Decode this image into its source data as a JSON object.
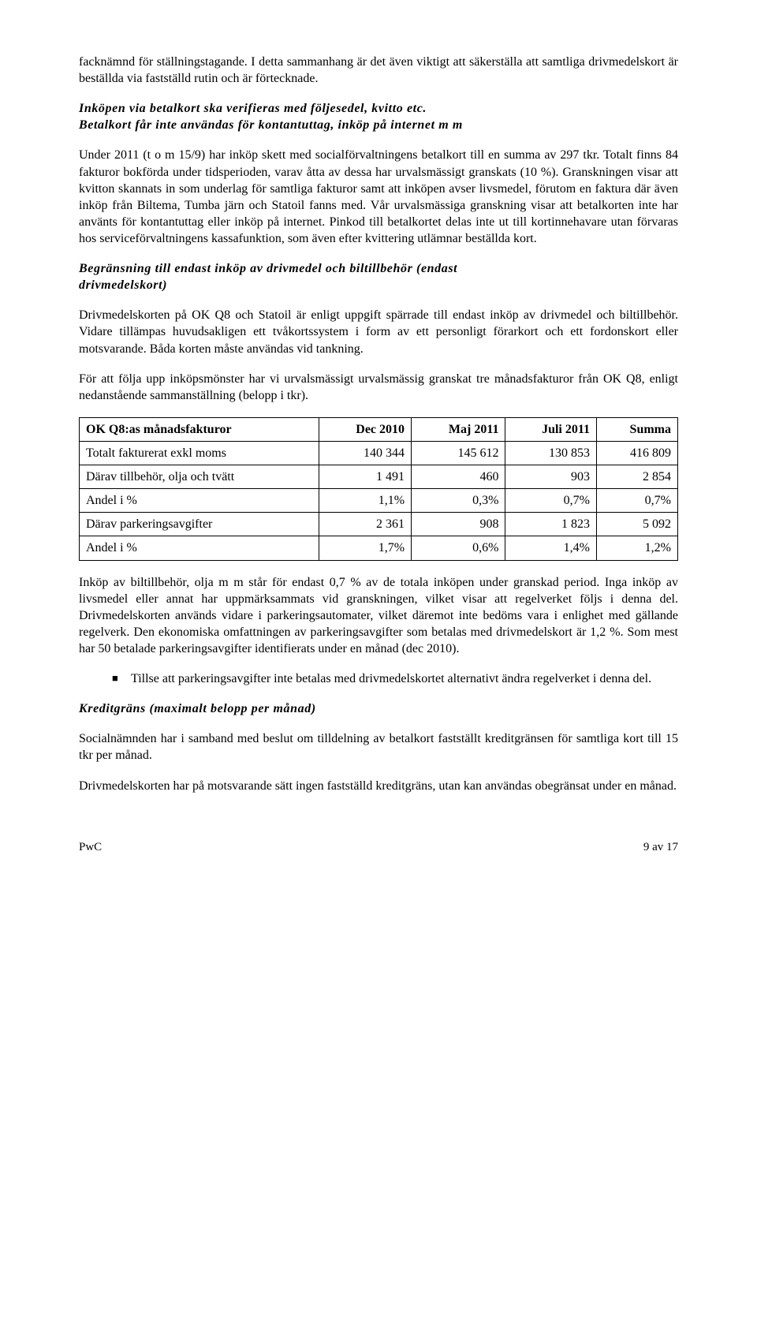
{
  "p1": "facknämnd för ställningstagande. I detta sammanhang är det även viktigt att säkerställa att samtliga drivmedelskort är beställda via fastställd rutin och är förtecknade.",
  "h1_line1": "Inköpen via betalkort ska verifieras med följesedel, kvitto etc.",
  "h1_line2": "Betalkort får inte användas för kontantuttag, inköp på internet m m",
  "p2": "Under 2011 (t o m 15/9) har inköp skett med socialförvaltningens betalkort till en summa av 297 tkr. Totalt finns 84 fakturor bokförda under tidsperioden, varav åtta av dessa har urvalsmässigt granskats (10 %). Granskningen visar att kvitton skannats in som underlag för samtliga fakturor samt att inköpen avser livsmedel, förutom en faktura där även inköp från Biltema, Tumba järn och Statoil fanns med. Vår urvalsmässiga granskning visar att betalkorten inte har använts för kontantuttag eller inköp på internet. Pinkod till betalkortet delas inte ut till kortinnehavare utan förvaras hos serviceförvaltningens kassafunktion, som även efter kvittering utlämnar beställda kort.",
  "h2_line1": "Begränsning till endast inköp av drivmedel och biltillbehör (endast",
  "h2_line2": "drivmedelskort)",
  "p3": "Drivmedelskorten på OK Q8 och Statoil är enligt uppgift spärrade till endast inköp av drivmedel och biltillbehör. Vidare tillämpas huvudsakligen ett tvåkortssystem i form av ett personligt förarkort och ett fordonskort eller motsvarande. Båda korten måste användas vid tankning.",
  "p4": "För att följa upp inköpsmönster har vi urvalsmässigt urvalsmässig granskat tre månadsfakturor från OK Q8, enligt nedanstående sammanställning (belopp i tkr).",
  "table": {
    "headers": [
      "OK Q8:as månadsfakturor",
      "Dec 2010",
      "Maj 2011",
      "Juli 2011",
      "Summa"
    ],
    "rows": [
      [
        "Totalt fakturerat exkl moms",
        "140 344",
        "145 612",
        "130 853",
        "416 809"
      ],
      [
        "Därav tillbehör, olja och tvätt",
        "1 491",
        "460",
        "903",
        "2 854"
      ],
      [
        "Andel i %",
        "1,1%",
        "0,3%",
        "0,7%",
        "0,7%"
      ],
      [
        "Därav parkeringsavgifter",
        "2 361",
        "908",
        "1 823",
        "5 092"
      ],
      [
        "Andel i %",
        "1,7%",
        "0,6%",
        "1,4%",
        "1,2%"
      ]
    ]
  },
  "p5": "Inköp av biltillbehör, olja m m står för endast 0,7 % av de totala inköpen under granskad period. Inga inköp av livsmedel eller annat har uppmärksammats vid granskningen, vilket visar att regelverket följs i denna del. Drivmedelskorten används vidare i parkeringsautomater, vilket däremot inte bedöms vara i enlighet med gällande regelverk. Den ekonomiska omfattningen av parkeringsavgifter som betalas med drivmedelskort är 1,2 %. Som mest har 50 betalade parkeringsavgifter identifierats under en månad (dec 2010).",
  "bullet1": "Tillse att parkeringsavgifter inte betalas med drivmedelskortet alternativt ändra regelverket i denna del.",
  "h3": "Kreditgräns (maximalt belopp per månad)",
  "p6": "Socialnämnden har i samband med beslut om tilldelning av betalkort fastställt kreditgränsen för samtliga kort till 15 tkr per månad.",
  "p7": "Drivmedelskorten har på motsvarande sätt ingen fastställd kreditgräns, utan kan användas obegränsat under en månad.",
  "footer_left": "PwC",
  "footer_right": "9 av 17"
}
